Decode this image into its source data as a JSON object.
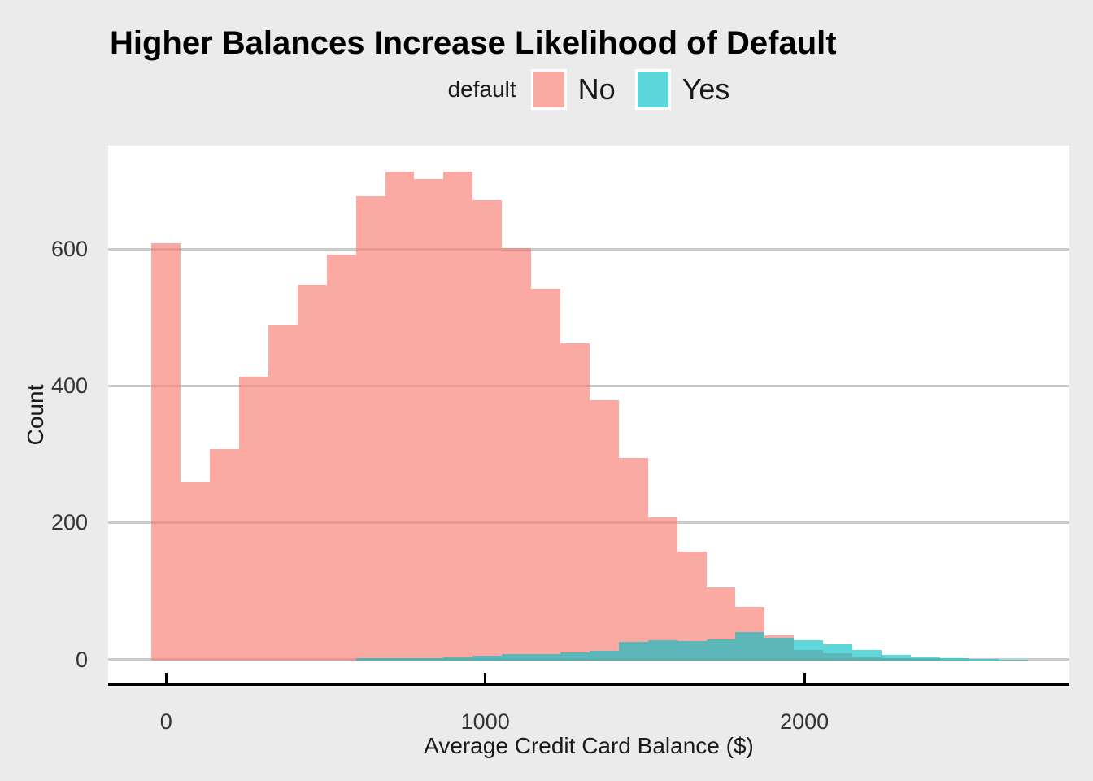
{
  "chart_data": {
    "type": "histogram",
    "title": "Higher Balances Increase Likelihood of Default",
    "xlabel": "Average Credit Card Balance ($)",
    "ylabel": "Count",
    "legend_title": "default",
    "legend_position": "top-center",
    "grid": "major-y-only",
    "x_ticks": [
      0,
      1000,
      2000
    ],
    "y_ticks": [
      0,
      200,
      400,
      600
    ],
    "x_range": [
      -182,
      2831
    ],
    "y_range": [
      0,
      753
    ],
    "bin_width": 91.5,
    "bin_centers": [
      0,
      92,
      183,
      275,
      366,
      458,
      549,
      641,
      732,
      824,
      915,
      1007,
      1098,
      1190,
      1281,
      1373,
      1464,
      1556,
      1647,
      1739,
      1830,
      1922,
      2013,
      2105,
      2196,
      2288,
      2379,
      2471,
      2562,
      2654,
      2745
    ],
    "series": [
      {
        "name": "No",
        "color": "#F8766D",
        "counts": [
          610,
          262,
          310,
          415,
          490,
          550,
          594,
          679,
          715,
          705,
          715,
          674,
          603,
          544,
          464,
          381,
          296,
          209,
          160,
          107,
          78,
          37,
          16,
          11,
          6,
          4,
          2,
          0,
          0,
          0,
          0
        ]
      },
      {
        "name": "Yes",
        "color": "#00BFC4",
        "counts": [
          0,
          0,
          0,
          0,
          0,
          0,
          0,
          3,
          3,
          4,
          5,
          7,
          10,
          9,
          12,
          14,
          27,
          30,
          29,
          31,
          42,
          33,
          30,
          24,
          15,
          8,
          5,
          3,
          2,
          1,
          0
        ]
      }
    ],
    "fill_alpha": 0.63,
    "colors": {
      "outer_background": "#EBEBEB",
      "panel_background": "#FFFFFF",
      "gridline": "#CBCBCB",
      "axis_line": "#000000",
      "tick_label": "#333333",
      "text": "#000000"
    }
  }
}
